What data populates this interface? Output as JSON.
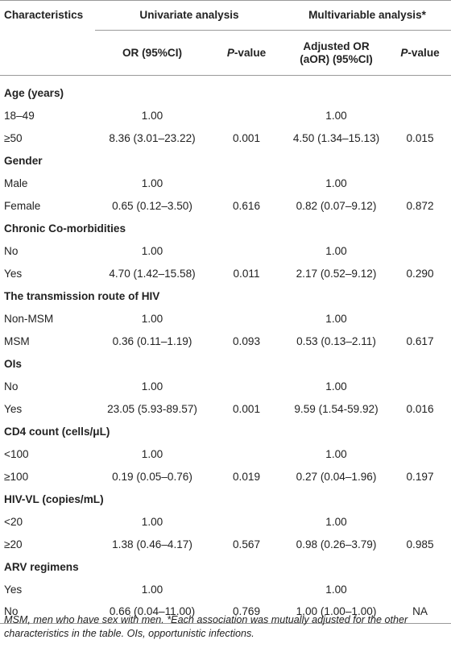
{
  "header": {
    "characteristics": "Characteristics",
    "univariate": "Univariate analysis",
    "multivariable": "Multivariable analysis*",
    "or": "OR (95%CI)",
    "pvalue_prefix": "P",
    "pvalue_suffix": "-value",
    "aor_line1": "Adjusted OR",
    "aor_line2": "(aOR) (95%CI)"
  },
  "groups": [
    {
      "title": "Age (years)",
      "rows": [
        {
          "label": "18–49",
          "or": "1.00",
          "p": "",
          "aor": "1.00",
          "ap": ""
        },
        {
          "label": "≥50",
          "or": "8.36 (3.01–23.22)",
          "p": "0.001",
          "aor": "4.50 (1.34–15.13)",
          "ap": "0.015"
        }
      ]
    },
    {
      "title": "Gender",
      "rows": [
        {
          "label": "Male",
          "or": "1.00",
          "p": "",
          "aor": "1.00",
          "ap": ""
        },
        {
          "label": "Female",
          "or": "0.65 (0.12–3.50)",
          "p": "0.616",
          "aor": "0.82 (0.07–9.12)",
          "ap": "0.872"
        }
      ]
    },
    {
      "title": "Chronic Co-morbidities",
      "rows": [
        {
          "label": "No",
          "or": "1.00",
          "p": "",
          "aor": "1.00",
          "ap": ""
        },
        {
          "label": "Yes",
          "or": "4.70 (1.42–15.58)",
          "p": "0.011",
          "aor": "2.17 (0.52–9.12)",
          "ap": "0.290"
        }
      ]
    },
    {
      "title": "The transmission route of HIV",
      "rows": [
        {
          "label": "Non-MSM",
          "or": "1.00",
          "p": "",
          "aor": "1.00",
          "ap": ""
        },
        {
          "label": "MSM",
          "or": "0.36 (0.11–1.19)",
          "p": "0.093",
          "aor": "0.53 (0.13–2.11)",
          "ap": "0.617"
        }
      ]
    },
    {
      "title": "OIs",
      "rows": [
        {
          "label": "No",
          "or": "1.00",
          "p": "",
          "aor": "1.00",
          "ap": ""
        },
        {
          "label": "Yes",
          "or": "23.05 (5.93-89.57)",
          "p": "0.001",
          "aor": "9.59 (1.54-59.92)",
          "ap": "0.016"
        }
      ]
    },
    {
      "title": "CD4 count (cells/μL)",
      "rows": [
        {
          "label": "<100",
          "or": "1.00",
          "p": "",
          "aor": "1.00",
          "ap": ""
        },
        {
          "label": "≥100",
          "or": "0.19 (0.05–0.76)",
          "p": "0.019",
          "aor": "0.27 (0.04–1.96)",
          "ap": "0.197"
        }
      ]
    },
    {
      "title": "HIV-VL (copies/mL)",
      "rows": [
        {
          "label": "<20",
          "or": "1.00",
          "p": "",
          "aor": "1.00",
          "ap": ""
        },
        {
          "label": "≥20",
          "or": "1.38 (0.46–4.17)",
          "p": "0.567",
          "aor": "0.98 (0.26–3.79)",
          "ap": "0.985"
        }
      ]
    },
    {
      "title": "ARV regimens",
      "rows": [
        {
          "label": "Yes",
          "or": "1.00",
          "p": "",
          "aor": "1.00",
          "ap": ""
        },
        {
          "label": "No",
          "or": "0.66 (0.04–11.00)",
          "p": "0.769",
          "aor": "1.00 (1.00–1.00)",
          "ap": "NA"
        }
      ]
    }
  ],
  "footnote": "MSM, men who have sex with men. *Each association was mutually adjusted for the other characteristics in the table. OIs, opportunistic infections."
}
